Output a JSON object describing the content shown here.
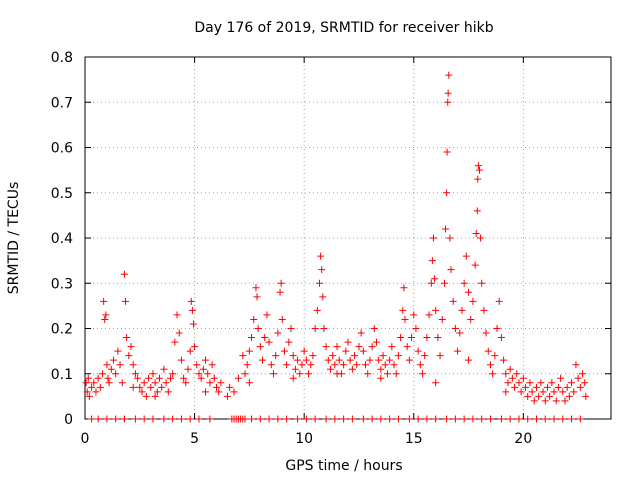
{
  "chart_data": {
    "type": "scatter",
    "title": "Day 176 of 2019, SRMTID for receiver hikb",
    "xlabel": "GPS time / hours",
    "ylabel": "SRMTID / TECUs",
    "xlim": [
      0,
      24
    ],
    "ylim": [
      0,
      0.8
    ],
    "xticks": [
      0,
      5,
      10,
      15,
      20
    ],
    "yticks": [
      0,
      0.1,
      0.2,
      0.3,
      0.4,
      0.5,
      0.6,
      0.7,
      0.8
    ],
    "xtick_labels": [
      "0",
      "5",
      "10",
      "15",
      "20"
    ],
    "ytick_labels": [
      "0",
      "0.1",
      "0.2",
      "0.3",
      "0.4",
      "0.5",
      "0.6",
      "0.7",
      "0.8"
    ],
    "grid": true,
    "marker": "+",
    "color": "#ff0000",
    "series": [
      {
        "name": "SRMTID",
        "points": [
          [
            0.05,
            0.08
          ],
          [
            0.1,
            0.06
          ],
          [
            0.15,
            0.09
          ],
          [
            0.2,
            0.05
          ],
          [
            0.3,
            0.07
          ],
          [
            0.4,
            0.08
          ],
          [
            0.5,
            0.06
          ],
          [
            0.6,
            0.09
          ],
          [
            0.7,
            0.07
          ],
          [
            0.8,
            0.1
          ],
          [
            0.85,
            0.26
          ],
          [
            0.9,
            0.22
          ],
          [
            0.95,
            0.23
          ],
          [
            1.0,
            0.12
          ],
          [
            1.05,
            0.09
          ],
          [
            1.1,
            0.08
          ],
          [
            1.2,
            0.11
          ],
          [
            1.3,
            0.13
          ],
          [
            1.4,
            0.1
          ],
          [
            1.5,
            0.15
          ],
          [
            1.6,
            0.12
          ],
          [
            1.7,
            0.08
          ],
          [
            1.8,
            0.32
          ],
          [
            1.85,
            0.26
          ],
          [
            1.9,
            0.18
          ],
          [
            2.0,
            0.14
          ],
          [
            2.1,
            0.16
          ],
          [
            2.2,
            0.12
          ],
          [
            2.3,
            0.1
          ],
          [
            2.4,
            0.09
          ],
          [
            2.5,
            0.07
          ],
          [
            2.6,
            0.06
          ],
          [
            2.7,
            0.08
          ],
          [
            2.8,
            0.05
          ],
          [
            2.9,
            0.09
          ],
          [
            3.0,
            0.07
          ],
          [
            3.1,
            0.1
          ],
          [
            3.2,
            0.08
          ],
          [
            3.3,
            0.06
          ],
          [
            3.4,
            0.09
          ],
          [
            3.5,
            0.07
          ],
          [
            3.6,
            0.11
          ],
          [
            3.7,
            0.08
          ],
          [
            3.8,
            0.06
          ],
          [
            3.9,
            0.09
          ],
          [
            4.0,
            0.1
          ],
          [
            4.1,
            0.17
          ],
          [
            4.2,
            0.23
          ],
          [
            4.3,
            0.19
          ],
          [
            4.4,
            0.13
          ],
          [
            4.5,
            0.09
          ],
          [
            4.6,
            0.08
          ],
          [
            4.7,
            0.11
          ],
          [
            4.8,
            0.15
          ],
          [
            4.85,
            0.26
          ],
          [
            4.9,
            0.24
          ],
          [
            4.95,
            0.21
          ],
          [
            5.0,
            0.16
          ],
          [
            5.1,
            0.12
          ],
          [
            5.2,
            0.1
          ],
          [
            5.3,
            0.09
          ],
          [
            5.4,
            0.11
          ],
          [
            5.5,
            0.13
          ],
          [
            5.6,
            0.1
          ],
          [
            5.7,
            0.08
          ],
          [
            5.8,
            0.12
          ],
          [
            5.9,
            0.09
          ],
          [
            6.0,
            0.07
          ],
          [
            6.1,
            0.06
          ],
          [
            6.2,
            0.08
          ],
          [
            6.5,
            0.05
          ],
          [
            6.6,
            0.07
          ],
          [
            6.8,
            0.06
          ],
          [
            7.0,
            0.09
          ],
          [
            7.2,
            0.14
          ],
          [
            7.3,
            0.1
          ],
          [
            7.4,
            0.12
          ],
          [
            7.5,
            0.15
          ],
          [
            7.6,
            0.18
          ],
          [
            7.7,
            0.22
          ],
          [
            7.8,
            0.29
          ],
          [
            7.85,
            0.27
          ],
          [
            7.9,
            0.2
          ],
          [
            8.0,
            0.16
          ],
          [
            8.1,
            0.13
          ],
          [
            8.2,
            0.18
          ],
          [
            8.3,
            0.23
          ],
          [
            8.4,
            0.17
          ],
          [
            8.5,
            0.12
          ],
          [
            8.6,
            0.1
          ],
          [
            8.7,
            0.14
          ],
          [
            8.8,
            0.19
          ],
          [
            8.9,
            0.28
          ],
          [
            8.95,
            0.3
          ],
          [
            9.0,
            0.22
          ],
          [
            9.1,
            0.15
          ],
          [
            9.2,
            0.12
          ],
          [
            9.3,
            0.17
          ],
          [
            9.4,
            0.2
          ],
          [
            9.5,
            0.14
          ],
          [
            9.6,
            0.11
          ],
          [
            9.7,
            0.13
          ],
          [
            9.8,
            0.1
          ],
          [
            9.9,
            0.12
          ],
          [
            10.0,
            0.15
          ],
          [
            10.1,
            0.13
          ],
          [
            10.2,
            0.1
          ],
          [
            10.3,
            0.12
          ],
          [
            10.4,
            0.14
          ],
          [
            10.5,
            0.2
          ],
          [
            10.6,
            0.24
          ],
          [
            10.7,
            0.3
          ],
          [
            10.75,
            0.36
          ],
          [
            10.8,
            0.33
          ],
          [
            10.85,
            0.27
          ],
          [
            10.9,
            0.2
          ],
          [
            11.0,
            0.16
          ],
          [
            11.1,
            0.13
          ],
          [
            11.2,
            0.11
          ],
          [
            11.3,
            0.14
          ],
          [
            11.4,
            0.12
          ],
          [
            11.5,
            0.16
          ],
          [
            11.6,
            0.13
          ],
          [
            11.7,
            0.1
          ],
          [
            11.8,
            0.12
          ],
          [
            11.9,
            0.15
          ],
          [
            12.0,
            0.17
          ],
          [
            12.1,
            0.13
          ],
          [
            12.2,
            0.11
          ],
          [
            12.3,
            0.14
          ],
          [
            12.4,
            0.12
          ],
          [
            12.5,
            0.16
          ],
          [
            12.6,
            0.19
          ],
          [
            12.7,
            0.15
          ],
          [
            12.8,
            0.12
          ],
          [
            12.9,
            0.1
          ],
          [
            13.0,
            0.13
          ],
          [
            13.1,
            0.16
          ],
          [
            13.2,
            0.2
          ],
          [
            13.3,
            0.17
          ],
          [
            13.4,
            0.13
          ],
          [
            13.5,
            0.11
          ],
          [
            13.6,
            0.14
          ],
          [
            13.7,
            0.12
          ],
          [
            13.8,
            0.1
          ],
          [
            13.9,
            0.13
          ],
          [
            14.0,
            0.16
          ],
          [
            14.1,
            0.12
          ],
          [
            14.2,
            0.1
          ],
          [
            14.3,
            0.14
          ],
          [
            14.4,
            0.18
          ],
          [
            14.5,
            0.24
          ],
          [
            14.55,
            0.29
          ],
          [
            14.6,
            0.22
          ],
          [
            14.7,
            0.16
          ],
          [
            14.8,
            0.13
          ],
          [
            14.9,
            0.18
          ],
          [
            15.0,
            0.23
          ],
          [
            15.1,
            0.2
          ],
          [
            15.2,
            0.15
          ],
          [
            15.3,
            0.12
          ],
          [
            15.4,
            0.1
          ],
          [
            15.5,
            0.14
          ],
          [
            15.6,
            0.18
          ],
          [
            15.7,
            0.23
          ],
          [
            15.8,
            0.3
          ],
          [
            15.85,
            0.35
          ],
          [
            15.9,
            0.4
          ],
          [
            15.95,
            0.31
          ],
          [
            16.0,
            0.24
          ],
          [
            16.1,
            0.18
          ],
          [
            16.2,
            0.14
          ],
          [
            16.3,
            0.22
          ],
          [
            16.4,
            0.3
          ],
          [
            16.45,
            0.42
          ],
          [
            16.5,
            0.5
          ],
          [
            16.52,
            0.59
          ],
          [
            16.55,
            0.7
          ],
          [
            16.57,
            0.72
          ],
          [
            16.6,
            0.76
          ],
          [
            16.65,
            0.4
          ],
          [
            16.7,
            0.33
          ],
          [
            16.8,
            0.26
          ],
          [
            16.9,
            0.2
          ],
          [
            17.0,
            0.15
          ],
          [
            17.1,
            0.19
          ],
          [
            17.2,
            0.24
          ],
          [
            17.3,
            0.3
          ],
          [
            17.4,
            0.36
          ],
          [
            17.5,
            0.28
          ],
          [
            17.6,
            0.22
          ],
          [
            17.7,
            0.26
          ],
          [
            17.8,
            0.34
          ],
          [
            17.85,
            0.41
          ],
          [
            17.9,
            0.46
          ],
          [
            17.92,
            0.53
          ],
          [
            17.95,
            0.56
          ],
          [
            18.0,
            0.55
          ],
          [
            18.05,
            0.4
          ],
          [
            18.1,
            0.3
          ],
          [
            18.2,
            0.24
          ],
          [
            18.3,
            0.19
          ],
          [
            18.4,
            0.15
          ],
          [
            18.5,
            0.12
          ],
          [
            18.6,
            0.1
          ],
          [
            18.7,
            0.14
          ],
          [
            18.8,
            0.2
          ],
          [
            18.9,
            0.26
          ],
          [
            19.0,
            0.18
          ],
          [
            19.1,
            0.13
          ],
          [
            19.2,
            0.1
          ],
          [
            19.3,
            0.08
          ],
          [
            19.4,
            0.11
          ],
          [
            19.5,
            0.09
          ],
          [
            19.6,
            0.07
          ],
          [
            19.7,
            0.1
          ],
          [
            19.8,
            0.08
          ],
          [
            19.9,
            0.06
          ],
          [
            20.0,
            0.09
          ],
          [
            20.1,
            0.07
          ],
          [
            20.2,
            0.05
          ],
          [
            20.3,
            0.08
          ],
          [
            20.4,
            0.06
          ],
          [
            20.5,
            0.04
          ],
          [
            20.6,
            0.07
          ],
          [
            20.7,
            0.05
          ],
          [
            20.8,
            0.08
          ],
          [
            20.9,
            0.06
          ],
          [
            21.0,
            0.04
          ],
          [
            21.1,
            0.07
          ],
          [
            21.2,
            0.05
          ],
          [
            21.3,
            0.08
          ],
          [
            21.4,
            0.06
          ],
          [
            21.5,
            0.04
          ],
          [
            21.6,
            0.07
          ],
          [
            21.7,
            0.09
          ],
          [
            21.8,
            0.06
          ],
          [
            21.9,
            0.04
          ],
          [
            22.0,
            0.07
          ],
          [
            22.1,
            0.05
          ],
          [
            22.2,
            0.08
          ],
          [
            22.3,
            0.06
          ],
          [
            22.4,
            0.12
          ],
          [
            22.5,
            0.09
          ],
          [
            22.6,
            0.07
          ],
          [
            22.7,
            0.1
          ],
          [
            22.8,
            0.08
          ],
          [
            22.85,
            0.05
          ],
          [
            2.2,
            0.07
          ],
          [
            3.2,
            0.05
          ],
          [
            5.5,
            0.06
          ],
          [
            7.5,
            0.08
          ],
          [
            9.5,
            0.09
          ],
          [
            11.5,
            0.1
          ],
          [
            13.5,
            0.09
          ],
          [
            16.0,
            0.08
          ],
          [
            17.5,
            0.13
          ],
          [
            19.2,
            0.06
          ],
          [
            0.3,
            0.0
          ],
          [
            0.6,
            0.0
          ],
          [
            1.0,
            0.0
          ],
          [
            1.4,
            0.0
          ],
          [
            1.8,
            0.0
          ],
          [
            2.3,
            0.0
          ],
          [
            2.7,
            0.0
          ],
          [
            3.1,
            0.0
          ],
          [
            3.6,
            0.0
          ],
          [
            4.0,
            0.0
          ],
          [
            4.4,
            0.0
          ],
          [
            4.8,
            0.0
          ],
          [
            5.2,
            0.0
          ],
          [
            5.7,
            0.0
          ],
          [
            6.7,
            0.0
          ],
          [
            6.8,
            0.0
          ],
          [
            6.9,
            0.0
          ],
          [
            7.0,
            0.0
          ],
          [
            7.1,
            0.0
          ],
          [
            7.2,
            0.0
          ],
          [
            7.3,
            0.0
          ],
          [
            7.6,
            0.0
          ],
          [
            8.0,
            0.0
          ],
          [
            8.4,
            0.0
          ],
          [
            8.8,
            0.0
          ],
          [
            9.2,
            0.0
          ],
          [
            9.7,
            0.0
          ],
          [
            10.1,
            0.0
          ],
          [
            10.5,
            0.0
          ],
          [
            11.0,
            0.0
          ],
          [
            11.4,
            0.0
          ],
          [
            11.8,
            0.0
          ],
          [
            12.2,
            0.0
          ],
          [
            12.7,
            0.0
          ],
          [
            13.1,
            0.0
          ],
          [
            13.5,
            0.0
          ],
          [
            13.9,
            0.0
          ],
          [
            14.3,
            0.0
          ],
          [
            14.8,
            0.0
          ],
          [
            15.2,
            0.0
          ],
          [
            15.6,
            0.0
          ],
          [
            16.0,
            0.0
          ],
          [
            16.5,
            0.0
          ],
          [
            16.9,
            0.0
          ],
          [
            17.3,
            0.0
          ],
          [
            17.7,
            0.0
          ],
          [
            18.1,
            0.0
          ],
          [
            18.5,
            0.0
          ],
          [
            19.0,
            0.0
          ],
          [
            19.4,
            0.0
          ],
          [
            19.8,
            0.0
          ],
          [
            20.2,
            0.0
          ],
          [
            20.6,
            0.0
          ],
          [
            21.0,
            0.0
          ],
          [
            21.4,
            0.0
          ],
          [
            21.8,
            0.0
          ],
          [
            22.2,
            0.0
          ],
          [
            22.6,
            0.0
          ]
        ]
      }
    ]
  }
}
